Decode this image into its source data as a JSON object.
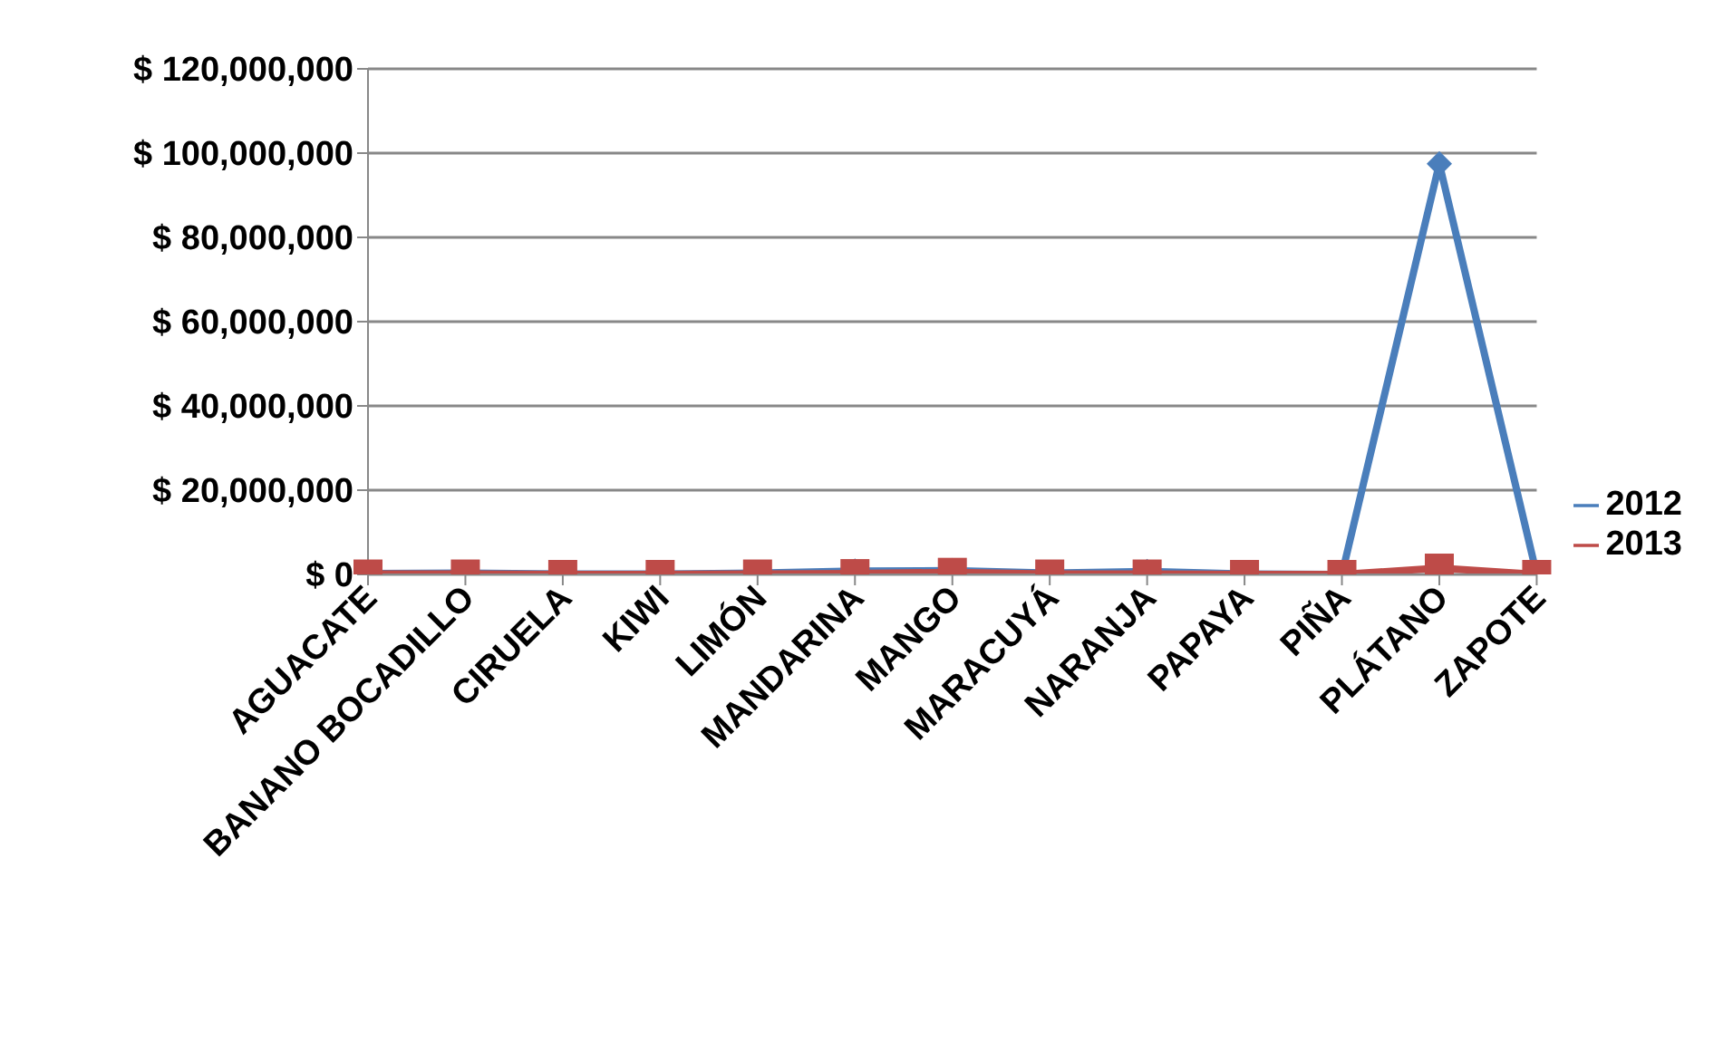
{
  "chart_data": {
    "type": "line",
    "categories": [
      "AGUACATE",
      "BANANO BOCADILLO",
      "CIRUELA",
      "KIWI",
      "LIMÓN",
      "MANDARINA",
      "MANGO",
      "MARACUYÁ",
      "NARANJA",
      "PAPAYA",
      "PIÑA",
      "PLÁTANO",
      "ZAPOTE"
    ],
    "series": [
      {
        "name": "2012",
        "color": "#4a7ebb",
        "marker": "diamond",
        "values": [
          200000,
          300000,
          100000,
          100000,
          300000,
          800000,
          900000,
          300000,
          700000,
          100000,
          0,
          97500000,
          0
        ]
      },
      {
        "name": "2013",
        "color": "#be4b48",
        "marker": "square",
        "values": [
          100000,
          100000,
          0,
          0,
          100000,
          200000,
          500000,
          100000,
          100000,
          0,
          0,
          1500000,
          0
        ]
      }
    ],
    "ylim": [
      0,
      120000000
    ],
    "yticks": [
      {
        "value": 0,
        "label": "$ 0"
      },
      {
        "value": 20000000,
        "label": "$ 20,000,000"
      },
      {
        "value": 40000000,
        "label": "$ 40,000,000"
      },
      {
        "value": 60000000,
        "label": "$ 60,000,000"
      },
      {
        "value": 80000000,
        "label": "$ 80,000,000"
      },
      {
        "value": 100000000,
        "label": "$ 100,000,000"
      },
      {
        "value": 120000000,
        "label": "$ 120,000,000"
      }
    ],
    "grid": "y",
    "legend": "right",
    "line_style": "solid"
  }
}
